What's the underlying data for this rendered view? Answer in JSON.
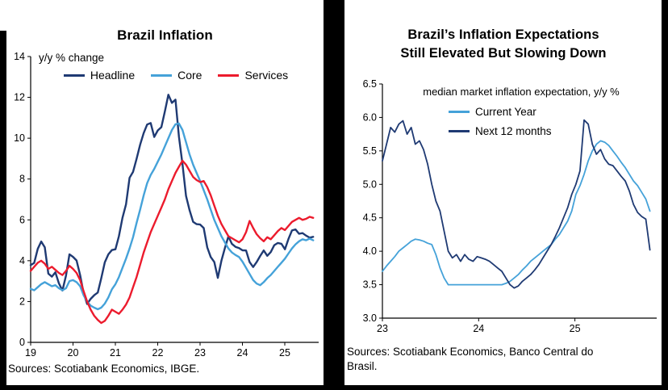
{
  "left_panel": {
    "title": "Brazil Inflation",
    "axis_note": "y/y % change",
    "source": "Sources: Scotiabank Economics, IBGE.",
    "legend": [
      {
        "label": "Headline",
        "color": "#1f3a73"
      },
      {
        "label": "Core",
        "color": "#45a2d9"
      },
      {
        "label": "Services",
        "color": "#ec1b2d"
      }
    ]
  },
  "right_panel": {
    "title_line1": "Brazil’s Inflation Expectations",
    "title_line2": "Still Elevated But Slowing Down",
    "subtitle": "median market inflation expectation, y/y %",
    "source_line1": "Sources: Scotiabank Economics, Banco Central do",
    "source_line2": "Brasil.",
    "legend": [
      {
        "label": "Current Year",
        "color": "#45a2d9"
      },
      {
        "label": "Next 12 months",
        "color": "#1f3a73"
      }
    ]
  },
  "chart_data": [
    {
      "type": "line",
      "title": "Brazil Inflation",
      "ylabel": "y/y % change",
      "ylim": [
        0,
        14
      ],
      "ytick_step": 2,
      "xticks": [
        19,
        20,
        21,
        22,
        23,
        24,
        25
      ],
      "x_axis_range": [
        2019.0,
        2025.8
      ],
      "x_data_range": [
        2019.0,
        2025.67
      ],
      "legend_position": "top",
      "grid": false,
      "source": "Sources: Scotiabank Economics, IBGE.",
      "series": [
        {
          "name": "Headline",
          "color": "#1f3a73",
          "values": [
            3.78,
            3.89,
            4.58,
            4.94,
            4.66,
            3.37,
            3.22,
            3.43,
            2.89,
            2.54,
            3.27,
            4.31,
            4.19,
            4.01,
            3.3,
            2.4,
            1.88,
            2.13,
            2.31,
            2.44,
            3.14,
            3.92,
            4.31,
            4.52,
            4.56,
            5.2,
            6.1,
            6.76,
            8.06,
            8.35,
            8.99,
            9.68,
            10.25,
            10.67,
            10.74,
            10.06,
            10.38,
            10.54,
            11.3,
            12.13,
            11.73,
            11.89,
            10.07,
            8.73,
            7.17,
            6.47,
            5.9,
            5.79,
            5.77,
            5.6,
            4.65,
            4.18,
            3.94,
            3.16,
            3.99,
            4.61,
            5.19,
            4.82,
            4.68,
            4.62,
            4.51,
            4.5,
            3.93,
            3.69,
            3.93,
            4.23,
            4.5,
            4.24,
            4.42,
            4.76,
            4.87,
            4.83,
            4.56,
            5.06,
            5.48,
            5.53,
            5.32,
            5.35,
            5.23,
            5.13,
            5.17
          ]
        },
        {
          "name": "Core",
          "color": "#45a2d9",
          "values": [
            2.62,
            2.55,
            2.7,
            2.85,
            2.95,
            2.85,
            2.75,
            2.8,
            2.65,
            2.55,
            2.65,
            3.0,
            3.05,
            2.95,
            2.75,
            2.3,
            2.0,
            1.8,
            1.7,
            1.62,
            1.7,
            1.9,
            2.2,
            2.6,
            2.85,
            3.2,
            3.65,
            4.1,
            4.6,
            5.15,
            5.85,
            6.5,
            7.2,
            7.8,
            8.2,
            8.5,
            8.85,
            9.2,
            9.6,
            10.0,
            10.4,
            10.68,
            10.72,
            10.4,
            9.8,
            9.2,
            8.7,
            8.3,
            7.9,
            7.45,
            7.0,
            6.5,
            6.0,
            5.6,
            5.2,
            4.9,
            4.6,
            4.4,
            4.28,
            4.18,
            3.95,
            3.65,
            3.35,
            3.05,
            2.88,
            2.8,
            2.95,
            3.15,
            3.3,
            3.5,
            3.7,
            3.9,
            4.1,
            4.35,
            4.6,
            4.8,
            4.95,
            5.05,
            5.0,
            5.08,
            5.0
          ]
        },
        {
          "name": "Services",
          "color": "#ec1b2d",
          "values": [
            3.5,
            3.7,
            3.9,
            4.0,
            3.85,
            3.6,
            3.7,
            3.55,
            3.4,
            3.3,
            3.5,
            3.75,
            3.6,
            3.4,
            3.05,
            2.5,
            2.0,
            1.6,
            1.3,
            1.1,
            0.95,
            1.05,
            1.3,
            1.6,
            1.5,
            1.4,
            1.6,
            1.85,
            2.2,
            2.7,
            3.2,
            3.8,
            4.4,
            4.9,
            5.4,
            5.8,
            6.2,
            6.6,
            7.0,
            7.5,
            7.9,
            8.3,
            8.6,
            8.9,
            8.7,
            8.4,
            8.1,
            7.95,
            7.85,
            7.9,
            7.6,
            7.2,
            6.7,
            6.2,
            5.8,
            5.5,
            5.2,
            5.1,
            5.0,
            4.9,
            5.05,
            5.4,
            5.95,
            5.6,
            5.3,
            5.1,
            4.95,
            5.15,
            5.05,
            5.25,
            5.45,
            5.6,
            5.5,
            5.7,
            5.9,
            6.0,
            6.1,
            6.0,
            6.05,
            6.15,
            6.1
          ]
        }
      ]
    },
    {
      "type": "line",
      "title": "Brazil’s Inflation Expectations Still Elevated But Slowing Down",
      "subtitle": "median market inflation expectation, y/y %",
      "ylim": [
        3.0,
        6.5
      ],
      "ytick_step": 0.5,
      "xticks": [
        23,
        24,
        25
      ],
      "x_axis_range": [
        2023.0,
        2025.85
      ],
      "x_data_range": [
        2023.0,
        2025.78
      ],
      "legend_position": "top",
      "grid": false,
      "source": "Sources: Scotiabank Economics, Banco Central do Brasil.",
      "series": [
        {
          "name": "Current Year",
          "color": "#45a2d9",
          "values": [
            3.7,
            3.78,
            3.85,
            3.92,
            4.0,
            4.05,
            4.1,
            4.15,
            4.18,
            4.17,
            4.15,
            4.12,
            4.1,
            3.95,
            3.75,
            3.6,
            3.5,
            3.5,
            3.5,
            3.5,
            3.5,
            3.5,
            3.5,
            3.5,
            3.5,
            3.5,
            3.5,
            3.5,
            3.5,
            3.5,
            3.52,
            3.55,
            3.6,
            3.65,
            3.72,
            3.78,
            3.85,
            3.9,
            3.95,
            4.0,
            4.05,
            4.1,
            4.18,
            4.25,
            4.35,
            4.45,
            4.6,
            4.85,
            4.98,
            5.15,
            5.35,
            5.5,
            5.6,
            5.65,
            5.63,
            5.58,
            5.5,
            5.42,
            5.33,
            5.25,
            5.15,
            5.05,
            4.98,
            4.88,
            4.78,
            4.6
          ]
        },
        {
          "name": "Next 12 months",
          "color": "#1f3a73",
          "values": [
            5.35,
            5.6,
            5.85,
            5.78,
            5.9,
            5.95,
            5.75,
            5.85,
            5.6,
            5.65,
            5.52,
            5.3,
            5.0,
            4.75,
            4.6,
            4.3,
            4.0,
            3.9,
            3.95,
            3.85,
            3.95,
            3.88,
            3.85,
            3.92,
            3.9,
            3.88,
            3.85,
            3.8,
            3.75,
            3.7,
            3.6,
            3.5,
            3.45,
            3.48,
            3.55,
            3.6,
            3.65,
            3.72,
            3.8,
            3.9,
            4.0,
            4.1,
            4.22,
            4.35,
            4.5,
            4.65,
            4.85,
            5.0,
            5.2,
            5.96,
            5.9,
            5.6,
            5.45,
            5.52,
            5.38,
            5.3,
            5.28,
            5.2,
            5.12,
            5.05,
            4.9,
            4.7,
            4.58,
            4.52,
            4.48,
            4.02
          ]
        }
      ]
    }
  ]
}
